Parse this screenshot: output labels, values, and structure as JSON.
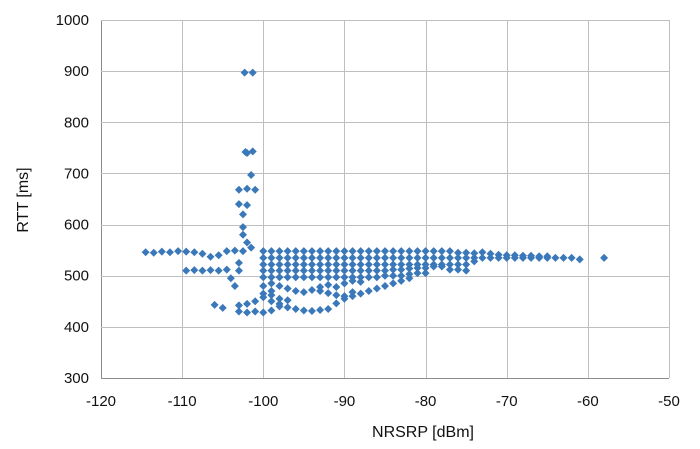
{
  "chart_data": {
    "type": "scatter",
    "title": "",
    "xlabel": "NRSRP [dBm]",
    "ylabel": "RTT [ms]",
    "xlim": [
      -120,
      -50
    ],
    "ylim": [
      300,
      1000
    ],
    "x_ticks": [
      -120,
      -110,
      -100,
      -90,
      -80,
      -70,
      -60,
      -50
    ],
    "y_ticks": [
      300,
      400,
      500,
      600,
      700,
      800,
      900,
      1000
    ],
    "x_tick_labels": [
      "-120",
      "-110",
      "-100",
      "-90",
      "-80",
      "-70",
      "-60",
      "-50"
    ],
    "y_tick_labels": [
      "300",
      "400",
      "500",
      "600",
      "700",
      "800",
      "900",
      "1000"
    ],
    "grid": true,
    "legend": "none",
    "marker": "diamond",
    "colors": {
      "marker": "#3A78B9",
      "grid": "#BFBFBF",
      "axis": "#8C8C8C"
    },
    "series": [
      {
        "points": [
          [
            -114.5,
            546
          ],
          [
            -113.5,
            545
          ],
          [
            -112.5,
            547
          ],
          [
            -111.5,
            546
          ],
          [
            -110.5,
            548
          ],
          [
            -109.5,
            547
          ],
          [
            -108.5,
            546
          ],
          [
            -107.5,
            543
          ],
          [
            -106.5,
            537
          ],
          [
            -105.5,
            540
          ],
          [
            -104.5,
            548
          ],
          [
            -103.5,
            549
          ],
          [
            -102.5,
            548
          ],
          [
            -109.5,
            510
          ],
          [
            -108.5,
            511
          ],
          [
            -107.5,
            510
          ],
          [
            -106.5,
            511
          ],
          [
            -105.5,
            510
          ],
          [
            -104.5,
            512
          ],
          [
            -106,
            443
          ],
          [
            -105,
            437
          ],
          [
            -104,
            495
          ],
          [
            -103.5,
            480
          ],
          [
            -103,
            510
          ],
          [
            -103,
            525
          ],
          [
            -102.3,
            897
          ],
          [
            -101.3,
            897
          ],
          [
            -102.2,
            742
          ],
          [
            -101.3,
            743
          ],
          [
            -102,
            740
          ],
          [
            -101.5,
            697
          ],
          [
            -103,
            668
          ],
          [
            -102,
            670
          ],
          [
            -101,
            668
          ],
          [
            -103,
            640
          ],
          [
            -102,
            638
          ],
          [
            -102.5,
            620
          ],
          [
            -102.5,
            595
          ],
          [
            -102.5,
            580
          ],
          [
            -102,
            565
          ],
          [
            -101.5,
            555
          ],
          [
            -103,
            430
          ],
          [
            -102,
            428
          ],
          [
            -101,
            430
          ],
          [
            -100,
            428
          ],
          [
            -99,
            432
          ],
          [
            -98,
            440
          ],
          [
            -103,
            442
          ],
          [
            -102,
            445
          ],
          [
            -101,
            450
          ],
          [
            -100,
            465
          ],
          [
            -99,
            470
          ],
          [
            -97,
            438
          ],
          [
            -96,
            435
          ],
          [
            -95,
            432
          ],
          [
            -94,
            431
          ],
          [
            -93,
            433
          ],
          [
            -92,
            435
          ],
          [
            -91,
            446
          ],
          [
            -90,
            455
          ],
          [
            -89,
            460
          ],
          [
            -88,
            465
          ],
          [
            -87,
            470
          ],
          [
            -86,
            475
          ],
          [
            -85,
            480
          ],
          [
            -84,
            485
          ],
          [
            -83,
            490
          ],
          [
            -82,
            495
          ],
          [
            -100,
            480
          ],
          [
            -99,
            485
          ],
          [
            -98,
            480
          ],
          [
            -97,
            475
          ],
          [
            -96,
            470
          ],
          [
            -95,
            468
          ],
          [
            -94,
            472
          ],
          [
            -93,
            478
          ],
          [
            -92,
            482
          ],
          [
            -91,
            478
          ],
          [
            -90,
            485
          ],
          [
            -89,
            490
          ],
          [
            -88,
            488
          ],
          [
            -100,
            548
          ],
          [
            -99,
            548
          ],
          [
            -98,
            548
          ],
          [
            -97,
            548
          ],
          [
            -96,
            548
          ],
          [
            -95,
            548
          ],
          [
            -94,
            548
          ],
          [
            -93,
            548
          ],
          [
            -92,
            548
          ],
          [
            -91,
            548
          ],
          [
            -90,
            548
          ],
          [
            -89,
            548
          ],
          [
            -88,
            548
          ],
          [
            -87,
            548
          ],
          [
            -86,
            548
          ],
          [
            -85,
            548
          ],
          [
            -84,
            548
          ],
          [
            -83,
            548
          ],
          [
            -82,
            548
          ],
          [
            -81,
            548
          ],
          [
            -80,
            548
          ],
          [
            -79,
            548
          ],
          [
            -78,
            548
          ],
          [
            -77,
            548
          ],
          [
            -100,
            535
          ],
          [
            -99,
            535
          ],
          [
            -98,
            535
          ],
          [
            -97,
            535
          ],
          [
            -96,
            535
          ],
          [
            -95,
            535
          ],
          [
            -94,
            535
          ],
          [
            -93,
            535
          ],
          [
            -92,
            535
          ],
          [
            -91,
            535
          ],
          [
            -90,
            535
          ],
          [
            -89,
            535
          ],
          [
            -88,
            535
          ],
          [
            -87,
            535
          ],
          [
            -86,
            535
          ],
          [
            -85,
            535
          ],
          [
            -84,
            535
          ],
          [
            -83,
            535
          ],
          [
            -82,
            535
          ],
          [
            -81,
            535
          ],
          [
            -80,
            535
          ],
          [
            -79,
            535
          ],
          [
            -78,
            535
          ],
          [
            -77,
            535
          ],
          [
            -76,
            535
          ],
          [
            -75,
            535
          ],
          [
            -74,
            535
          ],
          [
            -73,
            535
          ],
          [
            -72,
            535
          ],
          [
            -71,
            535
          ],
          [
            -70,
            535
          ],
          [
            -69,
            535
          ],
          [
            -68,
            535
          ],
          [
            -67,
            535
          ],
          [
            -66,
            535
          ],
          [
            -65,
            535
          ],
          [
            -64,
            535
          ],
          [
            -63,
            535
          ],
          [
            -62,
            535
          ],
          [
            -61,
            532
          ],
          [
            -76,
            545
          ],
          [
            -75,
            545
          ],
          [
            -74,
            544
          ],
          [
            -73,
            546
          ],
          [
            -72,
            543
          ],
          [
            -71,
            541
          ],
          [
            -70,
            540
          ],
          [
            -69,
            540
          ],
          [
            -68,
            539
          ],
          [
            -67,
            539
          ],
          [
            -66,
            538
          ],
          [
            -65,
            538
          ],
          [
            -100,
            522
          ],
          [
            -99,
            522
          ],
          [
            -98,
            522
          ],
          [
            -97,
            522
          ],
          [
            -96,
            522
          ],
          [
            -95,
            522
          ],
          [
            -94,
            522
          ],
          [
            -93,
            522
          ],
          [
            -92,
            522
          ],
          [
            -91,
            522
          ],
          [
            -90,
            522
          ],
          [
            -89,
            522
          ],
          [
            -88,
            522
          ],
          [
            -87,
            522
          ],
          [
            -86,
            522
          ],
          [
            -85,
            522
          ],
          [
            -84,
            522
          ],
          [
            -83,
            522
          ],
          [
            -82,
            522
          ],
          [
            -81,
            522
          ],
          [
            -80,
            522
          ],
          [
            -79,
            522
          ],
          [
            -78,
            522
          ],
          [
            -77,
            522
          ],
          [
            -76,
            522
          ],
          [
            -75,
            522
          ],
          [
            -74,
            528
          ],
          [
            -100,
            510
          ],
          [
            -99,
            510
          ],
          [
            -98,
            510
          ],
          [
            -97,
            510
          ],
          [
            -96,
            510
          ],
          [
            -95,
            510
          ],
          [
            -94,
            510
          ],
          [
            -93,
            510
          ],
          [
            -92,
            510
          ],
          [
            -91,
            510
          ],
          [
            -90,
            510
          ],
          [
            -89,
            510
          ],
          [
            -88,
            510
          ],
          [
            -87,
            510
          ],
          [
            -86,
            510
          ],
          [
            -85,
            510
          ],
          [
            -84,
            512
          ],
          [
            -83,
            512
          ],
          [
            -82,
            514
          ],
          [
            -81,
            515
          ],
          [
            -80,
            515
          ],
          [
            -79,
            518
          ],
          [
            -78,
            518
          ],
          [
            -77,
            512
          ],
          [
            -76,
            512
          ],
          [
            -75,
            510
          ],
          [
            -100,
            497
          ],
          [
            -99,
            497
          ],
          [
            -98,
            497
          ],
          [
            -97,
            497
          ],
          [
            -96,
            497
          ],
          [
            -95,
            497
          ],
          [
            -94,
            497
          ],
          [
            -93,
            497
          ],
          [
            -92,
            497
          ],
          [
            -91,
            497
          ],
          [
            -90,
            497
          ],
          [
            -89,
            497
          ],
          [
            -88,
            497
          ],
          [
            -87,
            497
          ],
          [
            -86,
            497
          ],
          [
            -85,
            500
          ],
          [
            -84,
            500
          ],
          [
            -83,
            500
          ],
          [
            -82,
            503
          ],
          [
            -81,
            505
          ],
          [
            -80,
            505
          ],
          [
            -100,
            458
          ],
          [
            -99,
            462
          ],
          [
            -98,
            455
          ],
          [
            -97,
            452
          ],
          [
            -98,
            445
          ],
          [
            -99,
            450
          ],
          [
            -93,
            470
          ],
          [
            -92,
            466
          ],
          [
            -91,
            462
          ],
          [
            -90,
            460
          ],
          [
            -89,
            468
          ],
          [
            -58,
            535
          ]
        ]
      }
    ]
  }
}
